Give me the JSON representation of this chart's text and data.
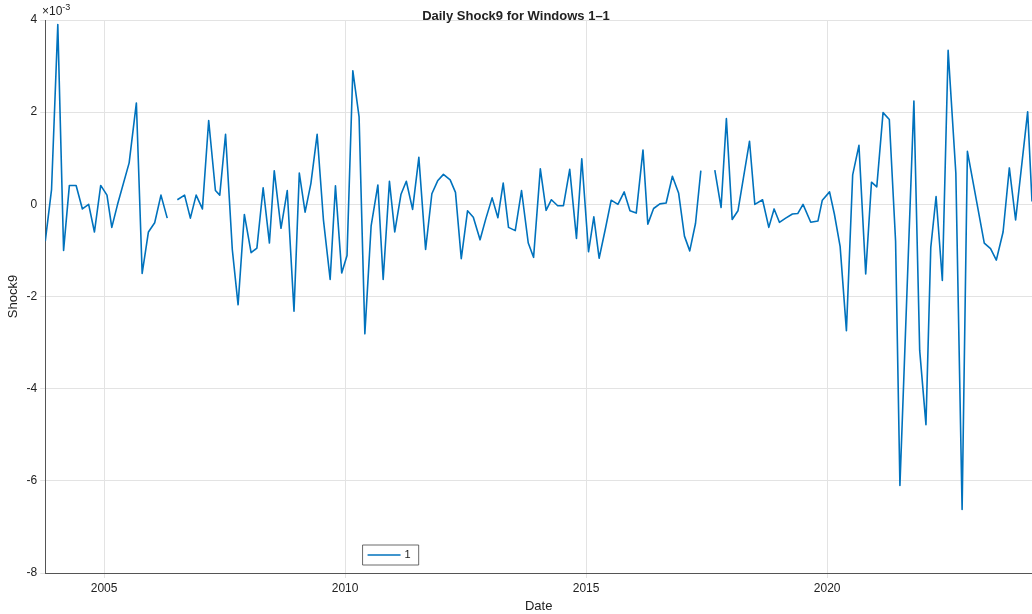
{
  "chart_data": {
    "type": "line",
    "title": "Daily Shock9 for Windows 1–1",
    "xlabel": "Date",
    "ylabel": "Shock9",
    "annotations": [
      "×10$^{-3}$"
    ],
    "xlim": [
      2003.78,
      2024.25
    ],
    "xticks": [
      2005,
      2010,
      2015,
      2020
    ],
    "ylim": [
      -8,
      4
    ],
    "yticks": [
      -8,
      -6,
      -4,
      -2,
      0,
      2,
      4
    ],
    "grid": true,
    "legend": "bottom",
    "marker": "none",
    "line_style": "solid",
    "series": [
      {
        "name": "1",
        "color": "#0072bd",
        "x": [
          2003.78,
          2003.91,
          2004.04,
          2004.16,
          2004.28,
          2004.42,
          2004.55,
          2004.68,
          2004.8,
          2004.93,
          2005.06,
          2005.16,
          2005.28,
          2005.52,
          2005.67,
          2005.79,
          2005.92,
          2006.05,
          2006.18,
          2006.31,
          2006.42,
          2006.52,
          2006.67,
          2006.79,
          2006.91,
          2007.04,
          2007.17,
          2007.31,
          2007.4,
          2007.52,
          2007.66,
          2007.78,
          2007.91,
          2008.05,
          2008.17,
          2008.3,
          2008.43,
          2008.53,
          2008.67,
          2008.8,
          2008.94,
          2009.05,
          2009.17,
          2009.29,
          2009.42,
          2009.55,
          2009.69,
          2009.8,
          2009.93,
          2010.04,
          2010.16,
          2010.29,
          2010.41,
          2010.54,
          2010.68,
          2010.79,
          2010.92,
          2011.03,
          2011.16,
          2011.27,
          2011.4,
          2011.53,
          2011.67,
          2011.8,
          2011.92,
          2012.04,
          2012.18,
          2012.29,
          2012.41,
          2012.54,
          2012.66,
          2012.8,
          2012.92,
          2013.05,
          2013.17,
          2013.28,
          2013.39,
          2013.53,
          2013.66,
          2013.8,
          2013.91,
          2014.05,
          2014.17,
          2014.28,
          2014.41,
          2014.53,
          2014.66,
          2014.8,
          2014.91,
          2015.05,
          2015.16,
          2015.27,
          2015.4,
          2015.52,
          2015.66,
          2015.79,
          2015.91,
          2016.04,
          2016.18,
          2016.28,
          2016.4,
          2016.53,
          2016.66,
          2016.79,
          2016.92,
          2017.04,
          2017.15,
          2017.27,
          2017.38,
          2017.52,
          2017.67,
          2017.8,
          2017.91,
          2018.03,
          2018.15,
          2018.39,
          2018.5,
          2018.66,
          2018.79,
          2018.9,
          2019.01,
          2019.14,
          2019.28,
          2019.39,
          2019.5,
          2019.66,
          2019.81,
          2019.9,
          2020.05,
          2020.15,
          2020.27,
          2020.4,
          2020.53,
          2020.66,
          2020.8,
          2020.92,
          2021.03,
          2021.16,
          2021.29,
          2021.42,
          2021.51,
          2021.8,
          2021.92,
          2022.05,
          2022.15,
          2022.26,
          2022.39,
          2022.51,
          2022.67,
          2022.8,
          2022.91,
          2023.26,
          2023.39,
          2023.51,
          2023.65,
          2023.78,
          2023.91,
          2024.16,
          2024.25
        ],
        "values": [
          -0.8,
          0.32,
          3.9,
          -1.0,
          0.41,
          0.41,
          -0.1,
          0,
          -0.6,
          0.41,
          0.2,
          -0.5,
          0,
          0.9,
          2.2,
          -1.5,
          -0.6,
          -0.4,
          0.2,
          -0.3,
          null,
          0.1,
          0.2,
          -0.3,
          0.2,
          -0.1,
          1.82,
          0.3,
          0.2,
          1.52,
          -0.98,
          -2.18,
          -0.22,
          -1.05,
          -0.95,
          0.36,
          -0.84,
          0.73,
          -0.52,
          0.3,
          -2.32,
          0.68,
          -0.17,
          0.45,
          1.52,
          -0.33,
          -1.63,
          0.4,
          -1.49,
          -1.11,
          2.9,
          1.9,
          -2.81,
          -0.47,
          0.42,
          -1.63,
          0.5,
          -0.6,
          0.22,
          0.5,
          -0.11,
          1.02,
          -0.98,
          0.23,
          0.51,
          0.65,
          0.53,
          0.26,
          -1.18,
          -0.14,
          -0.28,
          -0.77,
          -0.31,
          0.14,
          -0.29,
          0.46,
          -0.5,
          -0.57,
          0.3,
          -0.84,
          -1.15,
          0.77,
          -0.13,
          0.1,
          -0.03,
          -0.03,
          0.76,
          -0.74,
          0.99,
          -1.03,
          -0.27,
          -1.17,
          -0.53,
          0.09,
          0,
          0.27,
          -0.14,
          -0.19,
          1.18,
          -0.43,
          -0.09,
          0.01,
          0.03,
          0.61,
          0.24,
          -0.69,
          -1.01,
          -0.41,
          0.73,
          null,
          0.74,
          -0.07,
          1.86,
          -0.33,
          -0.14,
          1.37,
          0,
          0.1,
          -0.5,
          -0.1,
          -0.39,
          -0.3,
          -0.21,
          -0.2,
          0,
          -0.39,
          -0.36,
          0.09,
          0.27,
          -0.21,
          -0.92,
          -2.74,
          0.64,
          1.28,
          -1.51,
          0.48,
          0.38,
          1.99,
          1.84,
          -0.8,
          -6.1,
          2.24,
          -3.17,
          -4.78,
          -0.94,
          0.17,
          -1.65,
          3.34,
          0.68,
          -6.62,
          1.15,
          -0.84,
          -0.96,
          -1.21,
          -0.6,
          0.79,
          -0.34,
          2.01,
          0.06
        ]
      }
    ]
  }
}
